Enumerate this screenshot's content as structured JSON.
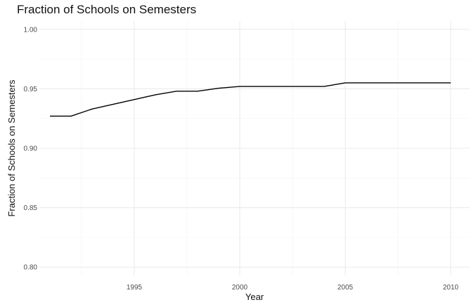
{
  "chart_data": {
    "type": "line",
    "title": "Fraction of Schools on Semesters",
    "xlabel": "Year",
    "ylabel": "Fraction of Schools on Semesters",
    "xlim": [
      1990.5,
      2010.9
    ],
    "ylim": [
      0.793,
      1.007
    ],
    "x_ticks": [
      1995,
      2000,
      2005,
      2010
    ],
    "y_ticks": [
      0.8,
      0.85,
      0.9,
      0.95,
      1.0
    ],
    "y_tick_labels": [
      "0.80",
      "0.85",
      "0.90",
      "0.95",
      "1.00"
    ],
    "grid": true,
    "series": [
      {
        "color": "#000000",
        "x": [
          1991,
          1992,
          1993,
          1994,
          1995,
          1996,
          1997,
          1998,
          1999,
          2000,
          2001,
          2002,
          2003,
          2004,
          2005,
          2006,
          2007,
          2008,
          2009,
          2010
        ],
        "y": [
          0.927,
          0.927,
          0.933,
          0.937,
          0.941,
          0.945,
          0.948,
          0.948,
          0.9505,
          0.952,
          0.952,
          0.952,
          0.952,
          0.952,
          0.955,
          0.955,
          0.955,
          0.955,
          0.955,
          0.955
        ]
      }
    ]
  }
}
